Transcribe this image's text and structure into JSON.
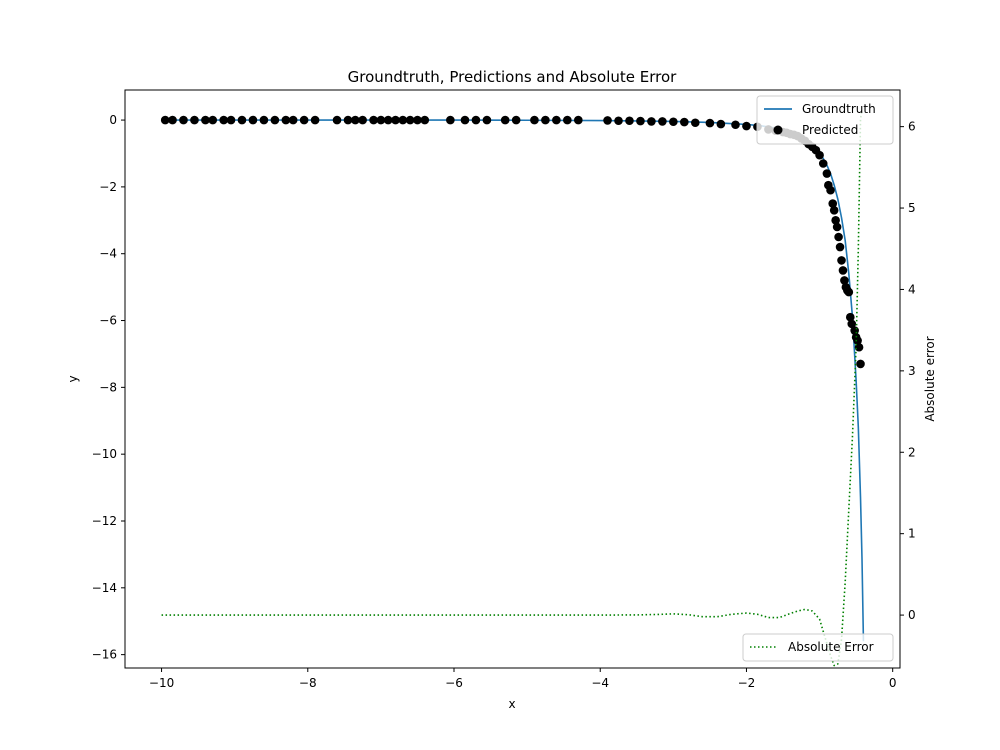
{
  "chart_data": {
    "type": "line",
    "title": "Groundtruth, Predictions and Absolute Error",
    "xlabel": "x",
    "ylabel": "y",
    "y2label": "Absolute error",
    "xlim": [
      -10.5,
      0.1
    ],
    "ylim": [
      -16.4,
      0.9
    ],
    "y2lim": [
      -0.65,
      6.45
    ],
    "xticks": [
      -10,
      -8,
      -6,
      -4,
      -2,
      0
    ],
    "yticks": [
      0,
      -2,
      -4,
      -6,
      -8,
      -10,
      -12,
      -14,
      -16
    ],
    "y2ticks": [
      0,
      1,
      2,
      3,
      4,
      5,
      6
    ],
    "legend_top": {
      "position": "top-right",
      "entries": [
        "Groundtruth",
        "Predicted"
      ]
    },
    "legend_bottom": {
      "position": "bottom-right",
      "entries": [
        "Absolute Error"
      ]
    },
    "colors": {
      "groundtruth": "#1f77b4",
      "predicted": "#000000",
      "error": "#008000"
    },
    "series": [
      {
        "name": "Groundtruth",
        "axis": "left",
        "style": "solid",
        "x": [
          -10,
          -8,
          -6,
          -5,
          -4,
          -3,
          -2.5,
          -2,
          -1.8,
          -1.6,
          -1.4,
          -1.3,
          -1.2,
          -1.1,
          -1.0,
          -0.95,
          -0.9,
          -0.85,
          -0.8,
          -0.75,
          -0.7,
          -0.65,
          -0.6,
          -0.55,
          -0.5,
          -0.47,
          -0.44,
          -0.42,
          -0.4
        ],
        "y": [
          0,
          0,
          0,
          -0.005,
          -0.015,
          -0.04,
          -0.07,
          -0.13,
          -0.17,
          -0.24,
          -0.36,
          -0.45,
          -0.58,
          -0.76,
          -1.0,
          -1.15,
          -1.35,
          -1.6,
          -1.95,
          -2.37,
          -2.92,
          -3.6,
          -4.6,
          -5.9,
          -7.8,
          -9.2,
          -11.3,
          -13.1,
          -15.6
        ]
      },
      {
        "name": "Predicted",
        "axis": "left",
        "style": "scatter",
        "x": [
          -9.95,
          -9.85,
          -9.7,
          -9.55,
          -9.4,
          -9.3,
          -9.15,
          -9.05,
          -8.9,
          -8.75,
          -8.6,
          -8.45,
          -8.3,
          -8.2,
          -8.05,
          -7.9,
          -7.6,
          -7.45,
          -7.35,
          -7.25,
          -7.1,
          -7.0,
          -6.9,
          -6.8,
          -6.7,
          -6.6,
          -6.5,
          -6.4,
          -6.05,
          -5.85,
          -5.7,
          -5.55,
          -5.3,
          -5.15,
          -4.9,
          -4.75,
          -4.6,
          -4.45,
          -4.3,
          -3.9,
          -3.75,
          -3.6,
          -3.45,
          -3.3,
          -3.15,
          -3.0,
          -2.85,
          -2.7,
          -2.5,
          -2.35,
          -2.15,
          -2.0,
          -1.85,
          -1.7,
          -1.6,
          -1.5,
          -1.45,
          -1.4,
          -1.35,
          -1.3,
          -1.25,
          -1.2,
          -1.15,
          -1.1,
          -1.05,
          -1.0,
          -0.95,
          -0.9,
          -0.88,
          -0.85,
          -0.82,
          -0.8,
          -0.78,
          -0.76,
          -0.74,
          -0.72,
          -0.7,
          -0.68,
          -0.66,
          -0.64,
          -0.62,
          -0.6,
          -0.58,
          -0.56,
          -0.52,
          -0.5,
          -0.48,
          -0.46,
          -0.44
        ],
        "y": [
          0,
          0,
          0,
          0,
          0,
          0,
          0,
          0,
          0,
          0,
          0,
          0,
          0,
          0,
          0,
          0,
          0,
          0,
          0,
          0,
          0,
          0,
          0,
          0,
          0,
          0,
          0,
          0,
          0,
          0,
          0,
          0,
          0,
          0,
          0,
          0,
          0,
          0,
          0,
          -0.01,
          -0.02,
          -0.02,
          -0.03,
          -0.04,
          -0.04,
          -0.05,
          -0.06,
          -0.08,
          -0.09,
          -0.12,
          -0.14,
          -0.18,
          -0.2,
          -0.28,
          -0.32,
          -0.36,
          -0.38,
          -0.42,
          -0.44,
          -0.48,
          -0.55,
          -0.62,
          -0.72,
          -0.8,
          -0.9,
          -1.05,
          -1.3,
          -1.6,
          -1.95,
          -2.1,
          -2.5,
          -2.7,
          -3.0,
          -3.2,
          -3.5,
          -3.8,
          -4.2,
          -4.5,
          -4.8,
          -5.0,
          -5.1,
          -5.15,
          -5.9,
          -6.1,
          -6.3,
          -6.5,
          -6.6,
          -6.8,
          -7.3
        ]
      },
      {
        "name": "Absolute Error",
        "axis": "right",
        "style": "dotted",
        "x": [
          -10,
          -8,
          -6,
          -5,
          -4,
          -3.5,
          -3.2,
          -3.0,
          -2.8,
          -2.6,
          -2.4,
          -2.2,
          -2.0,
          -1.85,
          -1.7,
          -1.55,
          -1.4,
          -1.3,
          -1.2,
          -1.1,
          -1.0,
          -0.95,
          -0.9,
          -0.85,
          -0.8,
          -0.75,
          -0.7,
          -0.65,
          -0.6,
          -0.55,
          -0.5,
          -0.47,
          -0.44,
          -0.42
        ],
        "y": [
          0,
          0,
          0,
          0,
          0,
          0.002,
          0.008,
          0.015,
          0.005,
          -0.02,
          -0.02,
          0.01,
          0.025,
          0.01,
          -0.03,
          -0.03,
          0.02,
          0.05,
          0.07,
          0.05,
          -0.05,
          -0.2,
          -0.35,
          -0.5,
          -0.62,
          -0.6,
          -0.3,
          0.4,
          1.3,
          2.2,
          3.3,
          4.5,
          6.1,
          6.2
        ]
      }
    ]
  }
}
